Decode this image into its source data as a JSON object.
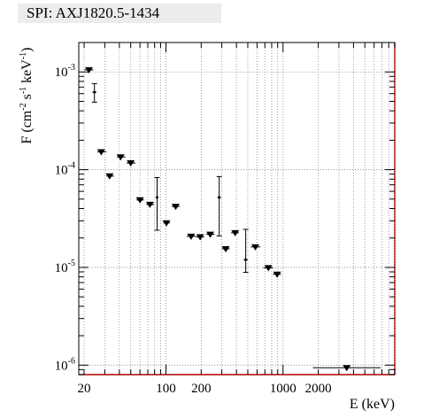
{
  "chart_data": {
    "type": "scatter",
    "title": "SPI: AXJ1820.5-1434",
    "xlabel": "E (keV)",
    "ylabel_main": "F (cm",
    "ylabel_sup1": "-2",
    "ylabel_mid1": " s",
    "ylabel_sup2": "-1",
    "ylabel_mid2": " keV",
    "ylabel_sup3": "-1",
    "ylabel_end": ")",
    "x_scale": "log",
    "y_scale": "log",
    "xlim": [
      18,
      9000
    ],
    "ylim": [
      8e-07,
      0.002
    ],
    "grid": true,
    "x_tick_labels": [
      {
        "value": 20,
        "label": "20"
      },
      {
        "value": 100,
        "label": "100"
      },
      {
        "value": 200,
        "label": "200"
      },
      {
        "value": 1000,
        "label": "1000"
      },
      {
        "value": 2000,
        "label": "2000"
      }
    ],
    "y_tick_labels": [
      {
        "value": 0.001,
        "base": "10",
        "exp": "-3"
      },
      {
        "value": 0.0001,
        "base": "10",
        "exp": "-4"
      },
      {
        "value": 1e-05,
        "base": "10",
        "exp": "-5"
      },
      {
        "value": 1e-06,
        "base": "10",
        "exp": "-6"
      }
    ],
    "upper_limits": [
      {
        "x": 22,
        "y": 0.00105,
        "xlo": 20,
        "xhi": 24
      },
      {
        "x": 28,
        "y": 0.000152,
        "xlo": 26,
        "xhi": 31
      },
      {
        "x": 33,
        "y": 8.6e-05,
        "xlo": 31,
        "xhi": 36
      },
      {
        "x": 41,
        "y": 0.000135,
        "xlo": 38,
        "xhi": 45
      },
      {
        "x": 50,
        "y": 0.000117,
        "xlo": 46,
        "xhi": 55
      },
      {
        "x": 60,
        "y": 4.9e-05,
        "xlo": 56,
        "xhi": 65
      },
      {
        "x": 73,
        "y": 4.4e-05,
        "xlo": 68,
        "xhi": 79
      },
      {
        "x": 101,
        "y": 2.85e-05,
        "xlo": 95,
        "xhi": 108
      },
      {
        "x": 121,
        "y": 4.2e-05,
        "xlo": 112,
        "xhi": 131
      },
      {
        "x": 164,
        "y": 2.08e-05,
        "xlo": 150,
        "xhi": 180
      },
      {
        "x": 196,
        "y": 2.05e-05,
        "xlo": 180,
        "xhi": 212
      },
      {
        "x": 239,
        "y": 2.18e-05,
        "xlo": 220,
        "xhi": 260
      },
      {
        "x": 324,
        "y": 1.55e-05,
        "xlo": 300,
        "xhi": 350
      },
      {
        "x": 390,
        "y": 2.26e-05,
        "xlo": 360,
        "xhi": 420
      },
      {
        "x": 580,
        "y": 1.62e-05,
        "xlo": 530,
        "xhi": 640
      },
      {
        "x": 750,
        "y": 9.9e-06,
        "xlo": 680,
        "xhi": 820
      },
      {
        "x": 890,
        "y": 8.5e-06,
        "xlo": 820,
        "xhi": 960
      },
      {
        "x": 3500,
        "y": 9.4e-07,
        "xlo": 1800,
        "xhi": 6800
      }
    ],
    "measurements": [
      {
        "x": 24.5,
        "y": 0.00062,
        "ylo": 0.00049,
        "yhi": 0.00076,
        "xlo": 23.5,
        "xhi": 25.5
      },
      {
        "x": 84,
        "y": 5.2e-05,
        "ylo": 2.4e-05,
        "yhi": 8.3e-05,
        "xlo": 82,
        "xhi": 86
      },
      {
        "x": 285,
        "y": 5.2e-05,
        "ylo": 2.1e-05,
        "yhi": 8.5e-05,
        "xlo": 275,
        "xhi": 295
      },
      {
        "x": 480,
        "y": 1.2e-05,
        "ylo": 8.9e-06,
        "yhi": 2.45e-05,
        "xlo": 460,
        "xhi": 500
      }
    ]
  }
}
